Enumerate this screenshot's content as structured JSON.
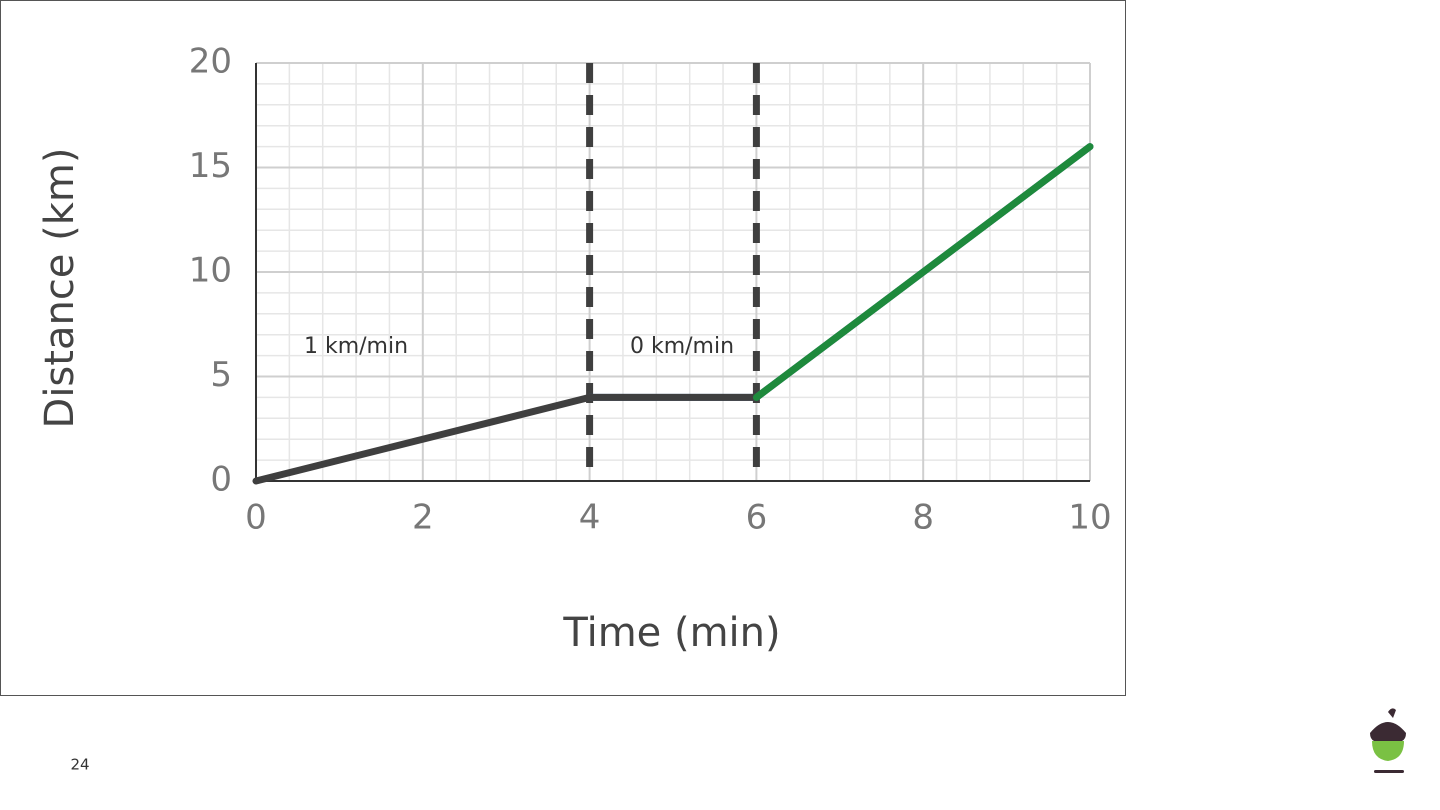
{
  "chart_data": {
    "type": "line",
    "x_label": "Time (min)",
    "y_label": "Distance (km)",
    "series": [
      {
        "color": "#4a6fa5",
        "x": [
          4,
          6,
          10
        ],
        "values": [
          4,
          4,
          16
        ]
      },
      {
        "color": "#3f3f3f",
        "x": [
          0,
          4,
          6
        ],
        "values": [
          0,
          4,
          4
        ]
      },
      {
        "color": "#1e8a3c",
        "x": [
          6,
          10
        ],
        "values": [
          4,
          16
        ]
      }
    ],
    "xlim": [
      0,
      10
    ],
    "ylim": [
      0,
      20
    ],
    "xticks": [
      0,
      2,
      4,
      6,
      8,
      10
    ],
    "yticks": [
      0,
      5,
      10,
      15,
      20
    ],
    "grid": true,
    "vlines": [
      4,
      6
    ],
    "annotations": [
      "1 km/min",
      "0 km/min"
    ]
  },
  "page_number": "24"
}
